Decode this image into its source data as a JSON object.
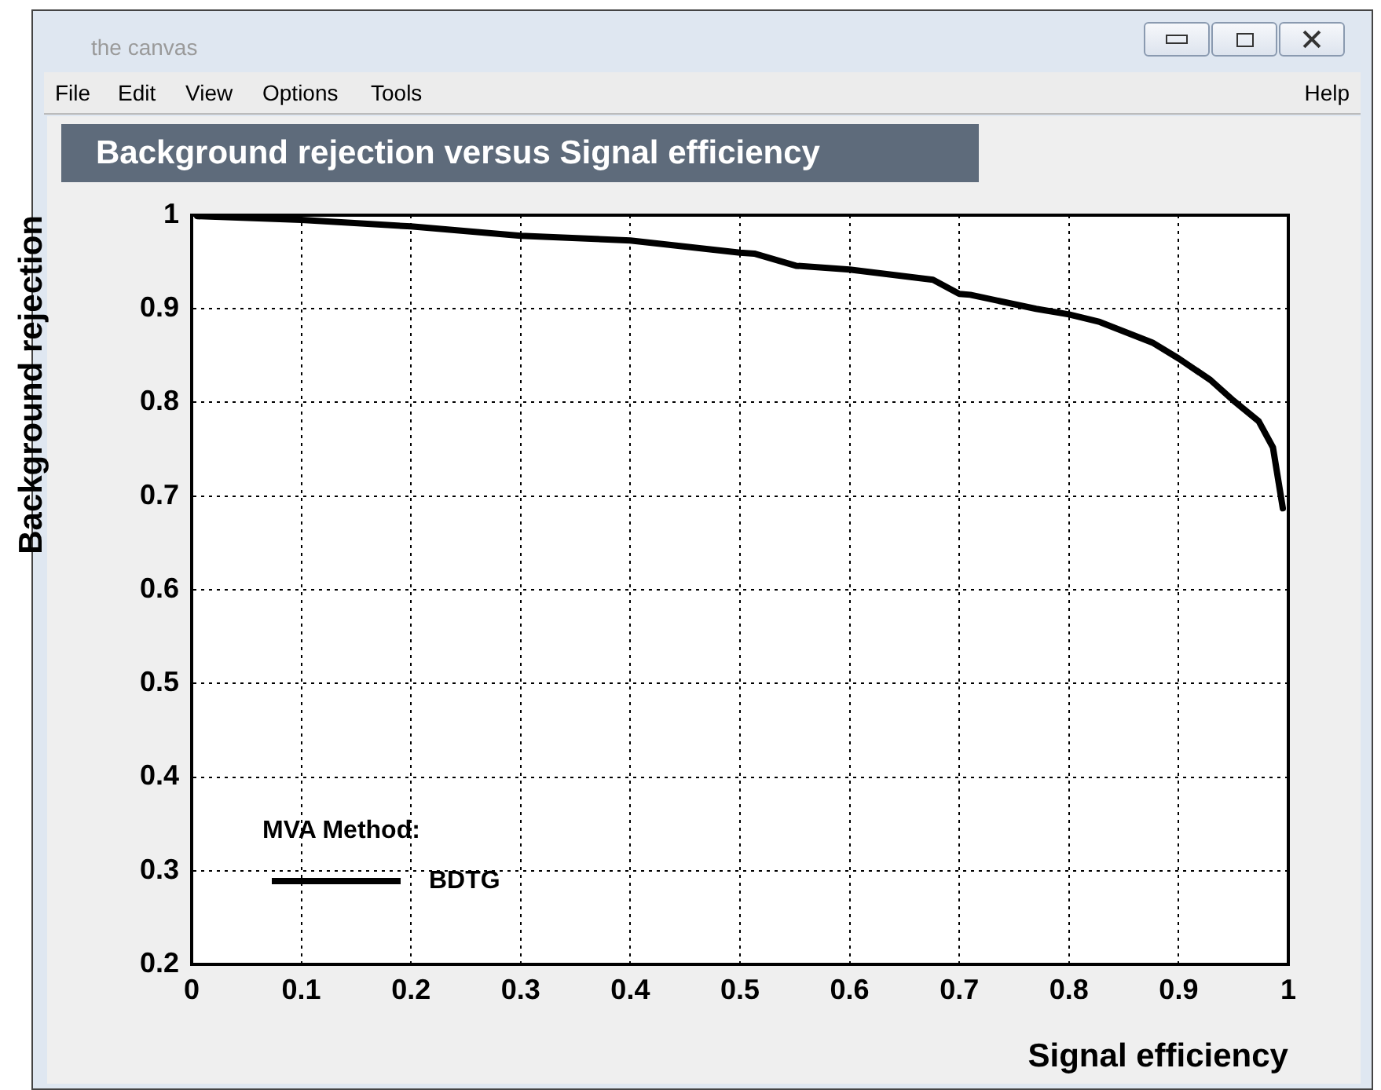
{
  "chart_data": {
    "type": "line",
    "title": "Background rejection versus Signal efficiency",
    "xlabel": "Signal efficiency",
    "ylabel": "Background rejection",
    "legend_title": "MVA Method:",
    "annotations": [
      "the canvas",
      "File",
      "Edit",
      "View",
      "Options",
      "Tools",
      "Help"
    ],
    "x": [
      0.005,
      0.1,
      0.2,
      0.3,
      0.4,
      0.5,
      0.513,
      0.551,
      0.6,
      0.676,
      0.7,
      0.71,
      0.77,
      0.8,
      0.828,
      0.876,
      0.9,
      0.929,
      0.95,
      0.973,
      0.986,
      0.995
    ],
    "series": [
      {
        "name": "BDTG",
        "color": "#000000",
        "values": [
          0.999,
          0.995,
          0.988,
          0.978,
          0.973,
          0.96,
          0.959,
          0.946,
          0.942,
          0.931,
          0.916,
          0.915,
          0.9,
          0.894,
          0.886,
          0.864,
          0.847,
          0.824,
          0.802,
          0.78,
          0.752,
          0.687
        ]
      }
    ],
    "xlim": [
      0,
      1
    ],
    "ylim": [
      0.2,
      1
    ],
    "xticks": [
      0,
      0.1,
      0.2,
      0.3,
      0.4,
      0.5,
      0.6,
      0.7,
      0.8,
      0.9,
      1
    ],
    "yticks": [
      0.2,
      0.3,
      0.4,
      0.5,
      0.6,
      0.7,
      0.8,
      0.9,
      1
    ],
    "grid": true,
    "legend": "bottom left",
    "marker": "none",
    "line_style": "solid"
  }
}
